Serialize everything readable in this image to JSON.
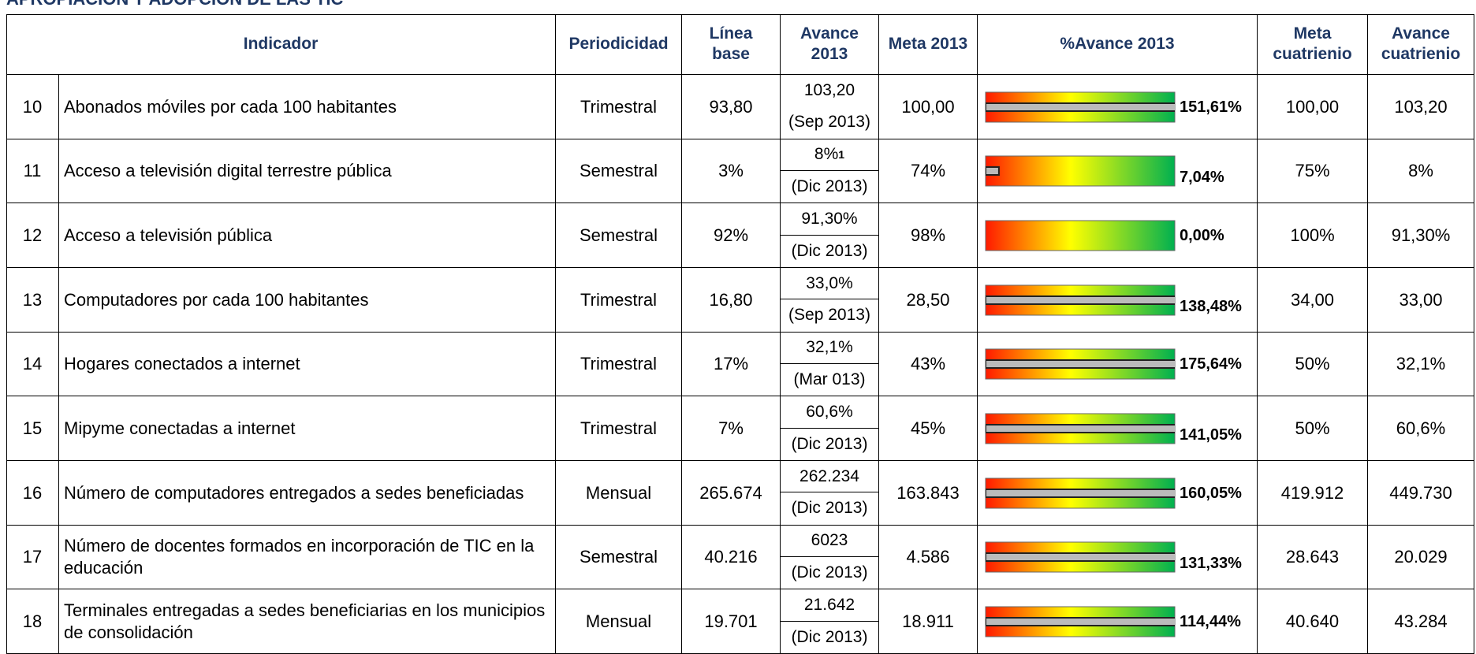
{
  "title": "APROPIACIÓN Y ADOPCIÓN DE LAS TIC",
  "table": {
    "headers": [
      "Indicador",
      "Periodicidad",
      "Línea base",
      "Avance 2013",
      "Meta 2013",
      "%Avance 2013",
      "Meta cuatrienio",
      "Avance cuatrienio"
    ],
    "rows": [
      {
        "num": "10",
        "indicador": "Abonados móviles por cada 100 habitantes",
        "periodicidad": "Trimestral",
        "linea_base": "93,80",
        "avance": "103,20",
        "fecha": "(Sep 2013)",
        "meta": "100,00",
        "pct": 151.61,
        "pct_label": "151,61%",
        "meta_cuatrienio": "100,00",
        "avance_cuatrienio": "103,20"
      },
      {
        "num": "11",
        "indicador": "Acceso a televisión digital terrestre pública",
        "periodicidad": "Semestral",
        "linea_base": "3%",
        "avance": "8%",
        "nota": "1",
        "fecha": "(Dic 2013)",
        "meta": "74%",
        "pct": 7.04,
        "pct_label": "7,04%",
        "meta_cuatrienio": "75%",
        "avance_cuatrienio": "8%"
      },
      {
        "num": "12",
        "indicador": "Acceso a televisión pública",
        "periodicidad": "Semestral",
        "linea_base": "92%",
        "avance": "91,30%",
        "fecha": "(Dic 2013)",
        "meta": "98%",
        "pct": 0,
        "pct_label": "0,00%",
        "meta_cuatrienio": "100%",
        "avance_cuatrienio": "91,30%"
      },
      {
        "num": "13",
        "indicador": "Computadores por cada 100 habitantes",
        "periodicidad": "Trimestral",
        "linea_base": "16,80",
        "avance": "33,0%",
        "fecha": "(Sep 2013)",
        "meta": "28,50",
        "pct": 138.48,
        "pct_label": "138,48%",
        "meta_cuatrienio": "34,00",
        "avance_cuatrienio": "33,00"
      },
      {
        "num": "14",
        "indicador": "Hogares conectados a internet",
        "periodicidad": "Trimestral",
        "linea_base": "17%",
        "avance": "32,1%",
        "fecha": "(Mar 013)",
        "meta": "43%",
        "pct": 175.64,
        "pct_label": "175,64%",
        "meta_cuatrienio": "50%",
        "avance_cuatrienio": "32,1%"
      },
      {
        "num": "15",
        "indicador": "Mipyme conectadas a internet",
        "periodicidad": "Trimestral",
        "linea_base": "7%",
        "avance": "60,6%",
        "fecha": "(Dic 2013)",
        "meta": "45%",
        "pct": 141.05,
        "pct_label": "141,05%",
        "meta_cuatrienio": "50%",
        "avance_cuatrienio": "60,6%"
      },
      {
        "num": "16",
        "indicador": "Número de computadores entregados a sedes beneficiadas",
        "periodicidad": "Mensual",
        "linea_base": "265.674",
        "avance": "262.234",
        "fecha": "(Dic 2013)",
        "meta": "163.843",
        "pct": 160.05,
        "pct_label": "160,05%",
        "meta_cuatrienio": "419.912",
        "avance_cuatrienio": "449.730"
      },
      {
        "num": "17",
        "indicador": "Número de docentes formados en incorporación de TIC en la educación",
        "periodicidad": "Semestral",
        "linea_base": "40.216",
        "avance": "6023",
        "fecha": "(Dic 2013)",
        "meta": "4.586",
        "pct": 131.33,
        "pct_label": "131,33%",
        "meta_cuatrienio": "28.643",
        "avance_cuatrienio": "20.029"
      },
      {
        "num": "18",
        "indicador": "Terminales entregadas a sedes beneficiarias en los municipios de consolidación",
        "periodicidad": "Mensual",
        "linea_base": "19.701",
        "avance": "21.642",
        "fecha": "(Dic 2013)",
        "meta": "18.911",
        "pct": 114.44,
        "pct_label": "114,44%",
        "meta_cuatrienio": "40.640",
        "avance_cuatrienio": "43.284"
      }
    ]
  }
}
